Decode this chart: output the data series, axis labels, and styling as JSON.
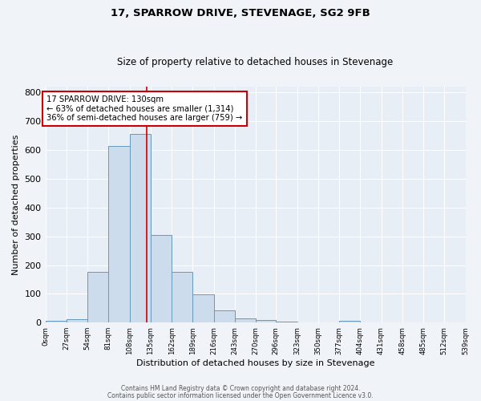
{
  "title": "17, SPARROW DRIVE, STEVENAGE, SG2 9FB",
  "subtitle": "Size of property relative to detached houses in Stevenage",
  "xlabel": "Distribution of detached houses by size in Stevenage",
  "ylabel": "Number of detached properties",
  "bin_edges": [
    0,
    27,
    54,
    81,
    108,
    135,
    162,
    189,
    216,
    243,
    270,
    296,
    323,
    350,
    377,
    404,
    431,
    458,
    485,
    512,
    539
  ],
  "bar_heights": [
    7,
    12,
    175,
    615,
    655,
    305,
    175,
    97,
    42,
    15,
    8,
    4,
    0,
    0,
    5,
    0,
    0,
    0,
    0,
    0
  ],
  "bar_color": "#ccdcec",
  "bar_edge_color": "#6699bb",
  "vline_color": "#cc0000",
  "vline_x": 130,
  "annotation_line1": "17 SPARROW DRIVE: 130sqm",
  "annotation_line2": "← 63% of detached houses are smaller (1,314)",
  "annotation_line3": "36% of semi-detached houses are larger (759) →",
  "annotation_box_color": "#cc0000",
  "annotation_box_bg": "#ffffff",
  "ylim": [
    0,
    820
  ],
  "yticks": [
    0,
    100,
    200,
    300,
    400,
    500,
    600,
    700,
    800
  ],
  "tick_labels": [
    "0sqm",
    "27sqm",
    "54sqm",
    "81sqm",
    "108sqm",
    "135sqm",
    "162sqm",
    "189sqm",
    "216sqm",
    "243sqm",
    "270sqm",
    "296sqm",
    "323sqm",
    "350sqm",
    "377sqm",
    "404sqm",
    "431sqm",
    "458sqm",
    "485sqm",
    "512sqm",
    "539sqm"
  ],
  "bg_color": "#e8eef5",
  "fig_bg_color": "#f0f4f8",
  "footer_line1": "Contains HM Land Registry data © Crown copyright and database right 2024.",
  "footer_line2": "Contains public sector information licensed under the Open Government Licence v3.0."
}
